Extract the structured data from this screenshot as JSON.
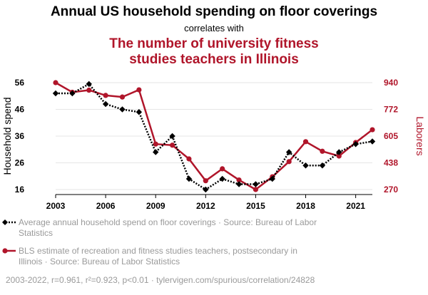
{
  "chart_data": {
    "type": "line",
    "title": "Annual US household spending on floor coverings",
    "subtitle": "correlates with",
    "subtitle_title": "The number of university fitness studies teachers in Illinois",
    "subtitle_title_lines": [
      "The number of university fitness",
      "studies teachers in Illinois"
    ],
    "x": [
      2003,
      2004,
      2005,
      2006,
      2007,
      2008,
      2009,
      2010,
      2011,
      2012,
      2013,
      2014,
      2015,
      2016,
      2017,
      2018,
      2019,
      2020,
      2021,
      2022
    ],
    "x_tick_labels": [
      "2003",
      "2006",
      "2009",
      "2012",
      "2015",
      "2018",
      "2021"
    ],
    "x_ticks": [
      2003,
      2006,
      2009,
      2012,
      2015,
      2018,
      2021
    ],
    "xlim": [
      2003,
      2022
    ],
    "left_axis": {
      "label": "Household spend",
      "ticks": [
        16,
        26,
        36,
        46,
        56
      ],
      "tick_labels": [
        "16",
        "26",
        "36",
        "46",
        "56"
      ],
      "ylim": [
        16,
        56
      ],
      "color": "#000000"
    },
    "right_axis": {
      "label": "Laborers",
      "ticks": [
        270,
        438,
        605,
        772,
        940
      ],
      "tick_labels": [
        "270",
        "438",
        "605",
        "772",
        "940"
      ],
      "ylim": [
        270,
        940
      ],
      "color": "#b0152a"
    },
    "grid": true,
    "legend_placement": "bottom",
    "series": [
      {
        "name": "Average annual household spend on floor coverings · Source: Bureau of Labor Statistics",
        "legend_lines": [
          "Average annual household spend on floor coverings · Source: Bureau of Labor",
          "Statistics"
        ],
        "axis": "left",
        "color": "#000000",
        "line_style": "dotted",
        "marker": "diamond",
        "values": [
          52,
          52,
          55.5,
          48,
          46,
          45,
          30,
          36,
          20,
          16,
          20,
          18,
          18,
          20,
          30,
          25,
          25,
          30,
          33,
          34
        ]
      },
      {
        "name": "BLS estimate of recreation and fitness studies teachers, postsecondary in Illinois · Source: Bureau of Labor Statistics",
        "legend_lines": [
          "BLS estimate of recreation and fitness studies teachers, postsecondary in",
          "Illinois · Source: Bureau of Labor Statistics"
        ],
        "axis": "right",
        "color": "#b0152a",
        "line_style": "solid",
        "marker": "circle",
        "values": [
          940,
          880,
          893,
          860,
          850,
          895,
          555,
          548,
          462,
          325,
          400,
          330,
          270,
          350,
          445,
          570,
          510,
          480,
          565,
          645
        ]
      }
    ],
    "footer": "2003-2022, r=0.961, r²=0.923, p<0.01 · tylervigen.com/spurious/correlation/24828"
  }
}
